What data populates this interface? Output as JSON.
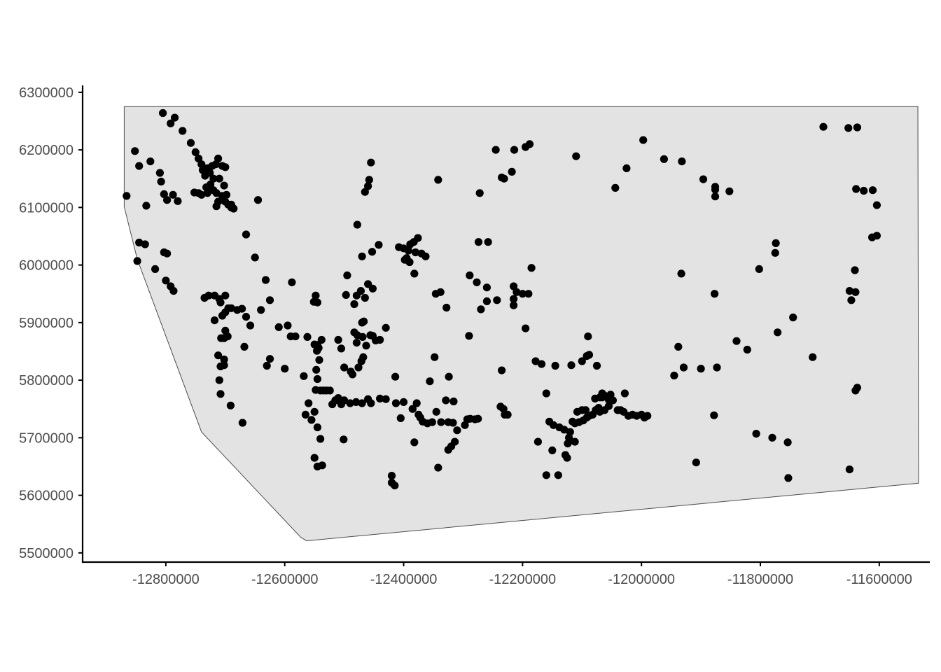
{
  "chart_data": {
    "type": "scatter",
    "title": "",
    "xlabel": "",
    "ylabel": "",
    "xlim": [
      -12940000,
      -11515000
    ],
    "ylim": [
      5484000,
      6312000
    ],
    "x_ticks": [
      -12800000,
      -12600000,
      -12400000,
      -12200000,
      -12000000,
      -11800000,
      -11600000
    ],
    "x_tick_labels": [
      "-12800000",
      "-12600000",
      "-12400000",
      "-12200000",
      "-12000000",
      "-11800000",
      "-11600000"
    ],
    "y_ticks": [
      5500000,
      5600000,
      5700000,
      5800000,
      5900000,
      6000000,
      6100000,
      6200000,
      6300000
    ],
    "y_tick_labels": [
      "5500000",
      "5600000",
      "5700000",
      "5800000",
      "5900000",
      "6000000",
      "6100000",
      "6200000",
      "6300000"
    ],
    "grid": false,
    "colors": {
      "polygon_fill": "#e3e3e3",
      "polygon_stroke": "#4d4d4d",
      "point": "#000000",
      "axis": "#000000"
    },
    "region_polygon": [
      [
        -12870000,
        6275000
      ],
      [
        -11535000,
        6275000
      ],
      [
        -11534000,
        5621000
      ],
      [
        -12563000,
        5521000
      ],
      [
        -12573000,
        5527000
      ],
      [
        -12740000,
        5710000
      ],
      [
        -12848000,
        6010000
      ],
      [
        -12870000,
        6101000
      ]
    ],
    "points": [
      [
        -12866,
        6120
      ],
      [
        -12852,
        6198
      ],
      [
        -12845,
        6172
      ],
      [
        -12833,
        6103
      ],
      [
        -12826,
        6180
      ],
      [
        -12810,
        6160
      ],
      [
        -12808,
        6145
      ],
      [
        -12803,
        6123
      ],
      [
        -12798,
        6113
      ],
      [
        -12788,
        6122
      ],
      [
        -12780,
        6111
      ],
      [
        -12772,
        6233
      ],
      [
        -12805,
        6264
      ],
      [
        -12792,
        6246
      ],
      [
        -12785,
        6256
      ],
      [
        -12758,
        6212
      ],
      [
        -12750,
        6196
      ],
      [
        -12745,
        6185
      ],
      [
        -12740,
        6175
      ],
      [
        -12738,
        6165
      ],
      [
        -12734,
        6155
      ],
      [
        -12730,
        6168
      ],
      [
        -12726,
        6160
      ],
      [
        -12722,
        6172
      ],
      [
        -12716,
        6175
      ],
      [
        -12712,
        6185
      ],
      [
        -12705,
        6172
      ],
      [
        -12700,
        6170
      ],
      [
        -12710,
        6150
      ],
      [
        -12720,
        6150
      ],
      [
        -12725,
        6140
      ],
      [
        -12720,
        6130
      ],
      [
        -12715,
        6125
      ],
      [
        -12705,
        6120
      ],
      [
        -12700,
        6110
      ],
      [
        -12695,
        6105
      ],
      [
        -12690,
        6100
      ],
      [
        -12732,
        6135
      ],
      [
        -12730,
        6125
      ],
      [
        -12740,
        6122
      ],
      [
        -12745,
        6125
      ],
      [
        -12752,
        6126
      ],
      [
        -12712,
        6110
      ],
      [
        -12715,
        6102
      ],
      [
        -12702,
        6138
      ],
      [
        -12698,
        6122
      ],
      [
        -12690,
        6105
      ],
      [
        -12686,
        6098
      ],
      [
        -12645,
        6113
      ],
      [
        -12665,
        6053
      ],
      [
        -12650,
        6013
      ],
      [
        -12845,
        6039
      ],
      [
        -12835,
        6036
      ],
      [
        -12848,
        6007
      ],
      [
        -12818,
        5993
      ],
      [
        -12803,
        6022
      ],
      [
        -12798,
        6020
      ],
      [
        -12800,
        5973
      ],
      [
        -12792,
        5963
      ],
      [
        -12787,
        5955
      ],
      [
        -12735,
        5943
      ],
      [
        -12728,
        5947
      ],
      [
        -12718,
        5947
      ],
      [
        -12710,
        5941
      ],
      [
        -12700,
        5947
      ],
      [
        -12708,
        5935
      ],
      [
        -12695,
        5925
      ],
      [
        -12690,
        5925
      ],
      [
        -12680,
        5922
      ],
      [
        -12672,
        5924
      ],
      [
        -12700,
        5918
      ],
      [
        -12705,
        5912
      ],
      [
        -12718,
        5904
      ],
      [
        -12700,
        5886
      ],
      [
        -12702,
        5873
      ],
      [
        -12696,
        5876
      ],
      [
        -12707,
        5873
      ],
      [
        -12712,
        5843
      ],
      [
        -12702,
        5836
      ],
      [
        -12708,
        5824
      ],
      [
        -12702,
        5826
      ],
      [
        -12710,
        5800
      ],
      [
        -12708,
        5776
      ],
      [
        -12691,
        5756
      ],
      [
        -12671,
        5726
      ],
      [
        -12668,
        5858
      ],
      [
        -12665,
        5910
      ],
      [
        -12658,
        5895
      ],
      [
        -12640,
        5922
      ],
      [
        -12632,
        5974
      ],
      [
        -12625,
        5939
      ],
      [
        -12610,
        5892
      ],
      [
        -12595,
        5895
      ],
      [
        -12590,
        5876
      ],
      [
        -12582,
        5876
      ],
      [
        -12600,
        5820
      ],
      [
        -12630,
        5825
      ],
      [
        -12625,
        5837
      ],
      [
        -12588,
        5970
      ],
      [
        -12568,
        5807
      ],
      [
        -12562,
        5875
      ],
      [
        -12551,
        5936
      ],
      [
        -12548,
        5947
      ],
      [
        -12545,
        5935
      ],
      [
        -12545,
        5861
      ],
      [
        -12546,
        5851
      ],
      [
        -12543,
        5856
      ],
      [
        -12538,
        5870
      ],
      [
        -12550,
        5862
      ],
      [
        -12542,
        5835
      ],
      [
        -12547,
        5818
      ],
      [
        -12545,
        5802
      ],
      [
        -12548,
        5783
      ],
      [
        -12540,
        5782
      ],
      [
        -12535,
        5782
      ],
      [
        -12530,
        5782
      ],
      [
        -12524,
        5782
      ],
      [
        -12520,
        5758
      ],
      [
        -12515,
        5765
      ],
      [
        -12510,
        5769
      ],
      [
        -12505,
        5758
      ],
      [
        -12500,
        5765
      ],
      [
        -12490,
        5760
      ],
      [
        -12480,
        5762
      ],
      [
        -12470,
        5760
      ],
      [
        -12460,
        5767
      ],
      [
        -12455,
        5760
      ],
      [
        -12440,
        5768
      ],
      [
        -12430,
        5767
      ],
      [
        -12560,
        5760
      ],
      [
        -12565,
        5740
      ],
      [
        -12555,
        5731
      ],
      [
        -12550,
        5745
      ],
      [
        -12545,
        5718
      ],
      [
        -12540,
        5698
      ],
      [
        -12550,
        5665
      ],
      [
        -12545,
        5650
      ],
      [
        -12537,
        5652
      ],
      [
        -12501,
        5697
      ],
      [
        -12510,
        5870
      ],
      [
        -12505,
        5855
      ],
      [
        -12500,
        5822
      ],
      [
        -12495,
        5982
      ],
      [
        -12497,
        5948
      ],
      [
        -12489,
        5815
      ],
      [
        -12486,
        5810
      ],
      [
        -12479,
        5865
      ],
      [
        -12483,
        5883
      ],
      [
        -12476,
        5822
      ],
      [
        -12478,
        5878
      ],
      [
        -12469,
        5875
      ],
      [
        -12463,
        5860
      ],
      [
        -12470,
        5900
      ],
      [
        -12467,
        5902
      ],
      [
        -12483,
        5932
      ],
      [
        -12479,
        5947
      ],
      [
        -12472,
        5955
      ],
      [
        -12465,
        5943
      ],
      [
        -12452,
        5959
      ],
      [
        -12460,
        5967
      ],
      [
        -12447,
        5869
      ],
      [
        -12430,
        5891
      ],
      [
        -12471,
        5833
      ],
      [
        -12468,
        5840
      ],
      [
        -12456,
        5878
      ],
      [
        -12452,
        5877
      ],
      [
        -12440,
        5870
      ],
      [
        -12478,
        6070
      ],
      [
        -12465,
        6127
      ],
      [
        -12460,
        6137
      ],
      [
        -12458,
        6148
      ],
      [
        -12455,
        6178
      ],
      [
        -12470,
        6015
      ],
      [
        -12453,
        6023
      ],
      [
        -12442,
        6035
      ],
      [
        -12408,
        6031
      ],
      [
        -12400,
        6029
      ],
      [
        -12392,
        6025
      ],
      [
        -12389,
        6036
      ],
      [
        -12383,
        6040
      ],
      [
        -12376,
        6047
      ],
      [
        -12380,
        6022
      ],
      [
        -12370,
        6020
      ],
      [
        -12363,
        6015
      ],
      [
        -12390,
        6005
      ],
      [
        -12395,
        6012
      ],
      [
        -12398,
        6009
      ],
      [
        -12382,
        5985
      ],
      [
        -12414,
        5806
      ],
      [
        -12413,
        5760
      ],
      [
        -12405,
        5734
      ],
      [
        -12400,
        5762
      ],
      [
        -12385,
        5750
      ],
      [
        -12375,
        5740
      ],
      [
        -12372,
        5735
      ],
      [
        -12368,
        5728
      ],
      [
        -12360,
        5725
      ],
      [
        -12352,
        5727
      ],
      [
        -12345,
        5745
      ],
      [
        -12337,
        5727
      ],
      [
        -12325,
        5727
      ],
      [
        -12317,
        5726
      ],
      [
        -12382,
        5692
      ],
      [
        -12325,
        5679
      ],
      [
        -12320,
        5685
      ],
      [
        -12314,
        5693
      ],
      [
        -12310,
        5713
      ],
      [
        -12316,
        5763
      ],
      [
        -12329,
        5765
      ],
      [
        -12356,
        5798
      ],
      [
        -12324,
        5806
      ],
      [
        -12348,
        5840
      ],
      [
        -12385,
        5750
      ],
      [
        -12378,
        5760
      ],
      [
        -12342,
        5648
      ],
      [
        -12415,
        5617
      ],
      [
        -12420,
        5634
      ],
      [
        -12420,
        5622
      ],
      [
        -12342,
        6148
      ],
      [
        -12346,
        5950
      ],
      [
        -12338,
        5953
      ],
      [
        -12328,
        5926
      ],
      [
        -12289,
        5982
      ],
      [
        -12290,
        5877
      ],
      [
        -12277,
        5970
      ],
      [
        -12260,
        5961
      ],
      [
        -12270,
        5923
      ],
      [
        -12260,
        5937
      ],
      [
        -12243,
        5939
      ],
      [
        -12272,
        6125
      ],
      [
        -12274,
        6040
      ],
      [
        -12258,
        6040
      ],
      [
        -12245,
        6200
      ],
      [
        -12235,
        6152
      ],
      [
        -12231,
        6150
      ],
      [
        -12218,
        6162
      ],
      [
        -12214,
        6200
      ],
      [
        -12195,
        6205
      ],
      [
        -12188,
        6210
      ],
      [
        -12185,
        5995
      ],
      [
        -12215,
        5963
      ],
      [
        -12215,
        5941
      ],
      [
        -12215,
        5930
      ],
      [
        -12210,
        5953
      ],
      [
        -12200,
        5950
      ],
      [
        -12190,
        5950
      ],
      [
        -12195,
        5890
      ],
      [
        -12178,
        5833
      ],
      [
        -12168,
        5828
      ],
      [
        -12235,
        5817
      ],
      [
        -12237,
        5754
      ],
      [
        -12232,
        5750
      ],
      [
        -12225,
        5740
      ],
      [
        -12230,
        5740
      ],
      [
        -12293,
        5732
      ],
      [
        -12297,
        5722
      ],
      [
        -12280,
        5732
      ],
      [
        -12288,
        5733
      ],
      [
        -12275,
        5733
      ],
      [
        -12174,
        5693
      ],
      [
        -12160,
        5777
      ],
      [
        -12155,
        5728
      ],
      [
        -12148,
        5722
      ],
      [
        -12138,
        5718
      ],
      [
        -12130,
        5714
      ],
      [
        -12120,
        5710
      ],
      [
        -12112,
        5725
      ],
      [
        -12105,
        5727
      ],
      [
        -12098,
        5730
      ],
      [
        -12092,
        5735
      ],
      [
        -12088,
        5738
      ],
      [
        -12082,
        5740
      ],
      [
        -12077,
        5748
      ],
      [
        -12070,
        5745
      ],
      [
        -12062,
        5748
      ],
      [
        -12055,
        5766
      ],
      [
        -12048,
        5765
      ],
      [
        -12040,
        5748
      ],
      [
        -12035,
        5748
      ],
      [
        -12030,
        5745
      ],
      [
        -12022,
        5738
      ],
      [
        -12015,
        5740
      ],
      [
        -12008,
        5738
      ],
      [
        -12000,
        5740
      ],
      [
        -11995,
        5735
      ],
      [
        -11990,
        5738
      ],
      [
        -12028,
        5777
      ],
      [
        -12052,
        5775
      ],
      [
        -12062,
        5773
      ],
      [
        -12070,
        5770
      ],
      [
        -12078,
        5768
      ],
      [
        -12094,
        5748
      ],
      [
        -12100,
        5748
      ],
      [
        -12108,
        5745
      ],
      [
        -12116,
        5728
      ],
      [
        -12122,
        5700
      ],
      [
        -12124,
        5690
      ],
      [
        -12128,
        5670
      ],
      [
        -12125,
        5665
      ],
      [
        -12112,
        5693
      ],
      [
        -12140,
        5635
      ],
      [
        -12150,
        5678
      ],
      [
        -12160,
        5635
      ],
      [
        -12145,
        5825
      ],
      [
        -12118,
        5826
      ],
      [
        -12100,
        5833
      ],
      [
        -12092,
        5842
      ],
      [
        -12090,
        5876
      ],
      [
        -12075,
        5825
      ],
      [
        -12088,
        5844
      ],
      [
        -12066,
        5777
      ],
      [
        -12066,
        5770
      ],
      [
        -12072,
        5752
      ],
      [
        -12055,
        5755
      ],
      [
        -12044,
        6134
      ],
      [
        -12025,
        6168
      ],
      [
        -11997,
        6217
      ],
      [
        -12110,
        6189
      ],
      [
        -11962,
        6184
      ],
      [
        -11932,
        6180
      ],
      [
        -11896,
        6149
      ],
      [
        -11876,
        6136
      ],
      [
        -11876,
        6131
      ],
      [
        -11876,
        6119
      ],
      [
        -11852,
        6128
      ],
      [
        -11933,
        5985
      ],
      [
        -11877,
        5950
      ],
      [
        -11945,
        5808
      ],
      [
        -11938,
        5858
      ],
      [
        -11929,
        5822
      ],
      [
        -11900,
        5820
      ],
      [
        -11873,
        5822
      ],
      [
        -11908,
        5657
      ],
      [
        -11878,
        5739
      ],
      [
        -11840,
        5868
      ],
      [
        -11822,
        5853
      ],
      [
        -11802,
        5993
      ],
      [
        -11771,
        5883
      ],
      [
        -11774,
        6038
      ],
      [
        -11775,
        6021
      ],
      [
        -11745,
        5909
      ],
      [
        -11712,
        5840
      ],
      [
        -11694,
        6240
      ],
      [
        -11652,
        6238
      ],
      [
        -11637,
        6239
      ],
      [
        -11639,
        6132
      ],
      [
        -11626,
        6129
      ],
      [
        -11611,
        6130
      ],
      [
        -11604,
        6104
      ],
      [
        -11612,
        6048
      ],
      [
        -11604,
        6051
      ],
      [
        -11641,
        5991
      ],
      [
        -11640,
        5953
      ],
      [
        -11650,
        5955
      ],
      [
        -11647,
        5939
      ],
      [
        -11637,
        5787
      ],
      [
        -11640,
        5782
      ],
      [
        -11807,
        5707
      ],
      [
        -11780,
        5700
      ],
      [
        -11754,
        5692
      ],
      [
        -11753,
        5630
      ],
      [
        -11650,
        5645
      ]
    ]
  }
}
